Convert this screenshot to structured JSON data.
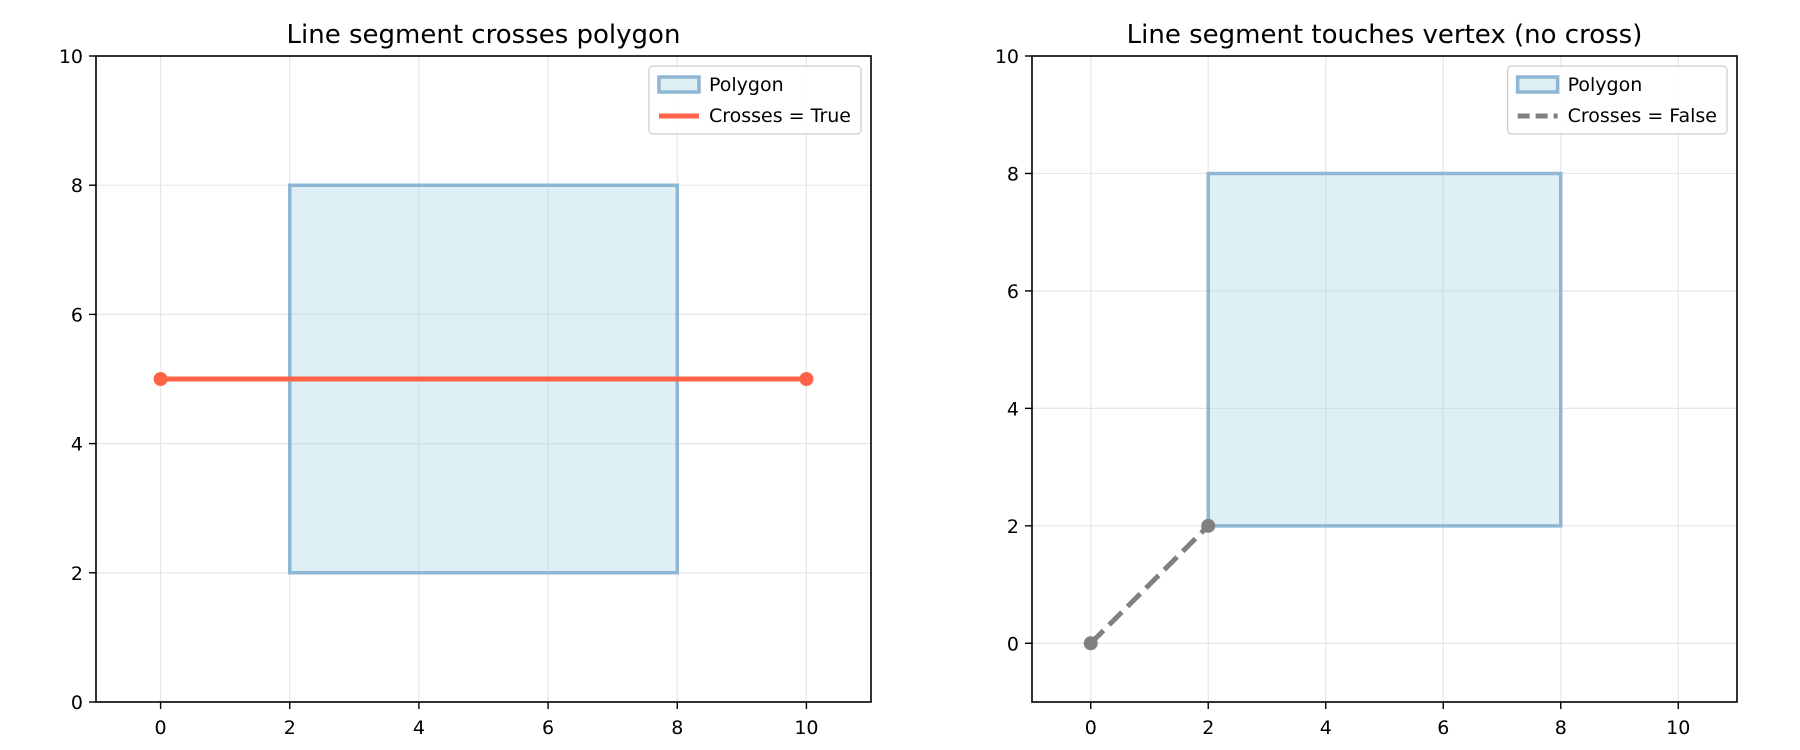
{
  "chart_data": [
    {
      "type": "line",
      "title": "Line segment crosses polygon",
      "xlabel": "",
      "ylabel": "",
      "xlim": [
        -1,
        11
      ],
      "ylim": [
        0,
        10
      ],
      "xticks": [
        0,
        2,
        4,
        6,
        8,
        10
      ],
      "yticks": [
        0,
        2,
        4,
        6,
        8,
        10
      ],
      "grid": true,
      "legend_position": "upper right",
      "polygon": {
        "name": "Polygon",
        "points": [
          [
            2,
            2
          ],
          [
            8,
            2
          ],
          [
            8,
            8
          ],
          [
            2,
            8
          ]
        ],
        "fill": "#add8e6",
        "edge": "#8fb7d3"
      },
      "series": [
        {
          "name": "Crosses = True",
          "x": [
            0,
            10
          ],
          "y": [
            5,
            5
          ],
          "color": "#ff6347",
          "dashed": false
        }
      ]
    },
    {
      "type": "line",
      "title": "Line segment touches vertex (no cross)",
      "xlabel": "",
      "ylabel": "",
      "xlim": [
        -1,
        11
      ],
      "ylim": [
        -1,
        10
      ],
      "xticks": [
        0,
        2,
        4,
        6,
        8,
        10
      ],
      "yticks": [
        0,
        2,
        4,
        6,
        8,
        10
      ],
      "grid": true,
      "legend_position": "upper right",
      "polygon": {
        "name": "Polygon",
        "points": [
          [
            2,
            2
          ],
          [
            8,
            2
          ],
          [
            8,
            8
          ],
          [
            2,
            8
          ]
        ],
        "fill": "#add8e6",
        "edge": "#8fb7d3"
      },
      "series": [
        {
          "name": "Crosses = False",
          "x": [
            0,
            2
          ],
          "y": [
            0,
            2
          ],
          "color": "#808080",
          "dashed": true
        }
      ]
    }
  ]
}
